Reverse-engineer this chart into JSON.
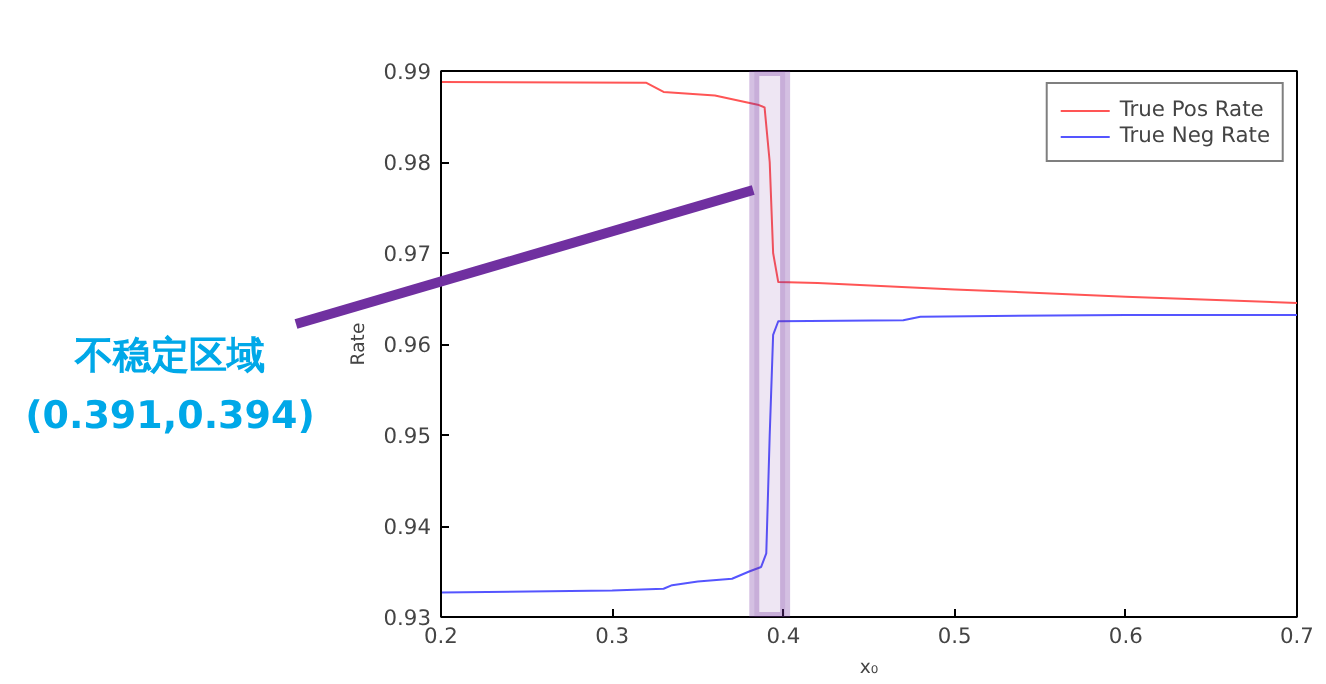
{
  "chart_data": {
    "type": "line",
    "xlabel": "x₀",
    "ylabel": "Rate",
    "xlim": [
      0.2,
      0.7
    ],
    "xticks": [
      0.2,
      0.3,
      0.4,
      0.5,
      0.6,
      0.7
    ],
    "ylim": [
      0.93,
      0.99
    ],
    "yticks": [
      0.93,
      0.94,
      0.95,
      0.96,
      0.97,
      0.98,
      0.99
    ],
    "grid": false,
    "legend": "top right",
    "series": [
      {
        "name": "True Pos Rate",
        "color": "#ff5555",
        "x": [
          0.2,
          0.32,
          0.33,
          0.36,
          0.385,
          0.389,
          0.392,
          0.394,
          0.397,
          0.42,
          0.5,
          0.6,
          0.7
        ],
        "values": [
          0.9888,
          0.9887,
          0.9877,
          0.9873,
          0.9863,
          0.986,
          0.98,
          0.97,
          0.9668,
          0.9667,
          0.966,
          0.9652,
          0.9645
        ]
      },
      {
        "name": "True Neg Rate",
        "color": "#5555ff",
        "x": [
          0.2,
          0.3,
          0.33,
          0.335,
          0.35,
          0.37,
          0.38,
          0.387,
          0.39,
          0.392,
          0.394,
          0.397,
          0.47,
          0.48,
          0.6,
          0.7
        ],
        "values": [
          0.9327,
          0.9329,
          0.9331,
          0.9335,
          0.9339,
          0.9342,
          0.935,
          0.9355,
          0.937,
          0.95,
          0.961,
          0.9625,
          0.9626,
          0.963,
          0.9632,
          0.9632
        ]
      }
    ],
    "bands": [
      {
        "axis": "x",
        "from": 0.383,
        "to": 0.401,
        "color": "#7030a0"
      }
    ],
    "annotations": [
      "不稳定区域\n(0.391,0.394)"
    ]
  }
}
